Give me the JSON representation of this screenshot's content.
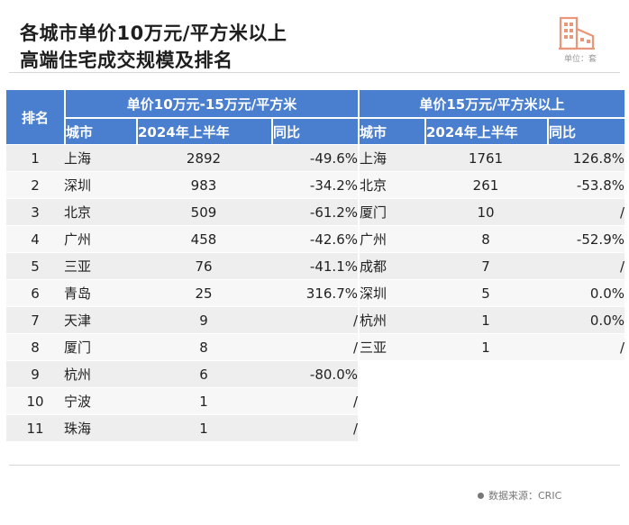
{
  "title": {
    "line1": "各城市单价10万元/平方米以上",
    "line2": "高端住宅成交规模及排名"
  },
  "logo": {
    "unit_label": "单位：套",
    "icon": "building-icon",
    "color": "#e8977a"
  },
  "colors": {
    "header_blue": "#4a7fd0",
    "row_gray": "#eeeeee"
  },
  "table": {
    "rank_header": "排名",
    "group_a": {
      "title": "单价10万元-15万元/平方米",
      "col_city": "城市",
      "col_volume": "2024年上半年",
      "col_yoy": "同比",
      "rows": [
        {
          "rank": "1",
          "city": "上海",
          "volume": "2892",
          "yoy": "-49.6%"
        },
        {
          "rank": "2",
          "city": "深圳",
          "volume": "983",
          "yoy": "-34.2%"
        },
        {
          "rank": "3",
          "city": "北京",
          "volume": "509",
          "yoy": "-61.2%"
        },
        {
          "rank": "4",
          "city": "广州",
          "volume": "458",
          "yoy": "-42.6%"
        },
        {
          "rank": "5",
          "city": "三亚",
          "volume": "76",
          "yoy": "-41.1%"
        },
        {
          "rank": "6",
          "city": "青岛",
          "volume": "25",
          "yoy": "316.7%"
        },
        {
          "rank": "7",
          "city": "天津",
          "volume": "9",
          "yoy": "/"
        },
        {
          "rank": "8",
          "city": "厦门",
          "volume": "8",
          "yoy": "/"
        },
        {
          "rank": "9",
          "city": "杭州",
          "volume": "6",
          "yoy": "-80.0%"
        },
        {
          "rank": "10",
          "city": "宁波",
          "volume": "1",
          "yoy": "/"
        },
        {
          "rank": "11",
          "city": "珠海",
          "volume": "1",
          "yoy": "/"
        }
      ]
    },
    "group_b": {
      "title": "单价15万元/平方米以上",
      "col_city": "城市",
      "col_volume": "2024年上半年",
      "col_yoy": "同比",
      "rows": [
        {
          "city": "上海",
          "volume": "1761",
          "yoy": "126.8%"
        },
        {
          "city": "北京",
          "volume": "261",
          "yoy": "-53.8%"
        },
        {
          "city": "厦门",
          "volume": "10",
          "yoy": "/"
        },
        {
          "city": "广州",
          "volume": "8",
          "yoy": "-52.9%"
        },
        {
          "city": "成都",
          "volume": "7",
          "yoy": "/"
        },
        {
          "city": "深圳",
          "volume": "5",
          "yoy": "0.0%"
        },
        {
          "city": "杭州",
          "volume": "1",
          "yoy": "0.0%"
        },
        {
          "city": "三亚",
          "volume": "1",
          "yoy": "/"
        }
      ]
    }
  },
  "footer": {
    "source": "数据来源：CRIC"
  }
}
